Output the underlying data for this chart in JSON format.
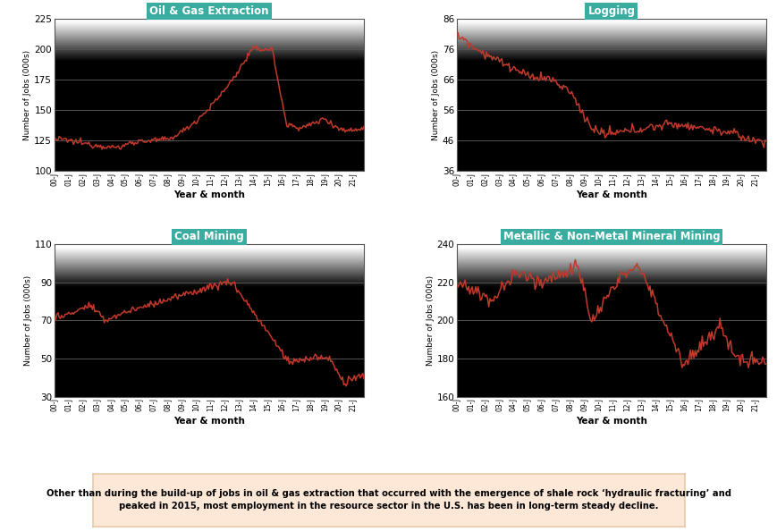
{
  "oil_gas": {
    "title": "Oil & Gas Extraction",
    "ylabel": "Number of Jobs (000s)",
    "xlabel": "Year & month",
    "ylim": [
      100,
      225
    ],
    "yticks": [
      100,
      125,
      150,
      175,
      200,
      225
    ]
  },
  "logging": {
    "title": "Logging",
    "ylabel": "Number of Jobs (000s)",
    "xlabel": "Year & month",
    "ylim": [
      36,
      86
    ],
    "yticks": [
      36,
      46,
      56,
      66,
      76,
      86
    ]
  },
  "coal": {
    "title": "Coal Mining",
    "ylabel": "Number of Jobs (000s)",
    "xlabel": "Year & month",
    "ylim": [
      30,
      110
    ],
    "yticks": [
      30,
      50,
      70,
      90,
      110
    ]
  },
  "mining": {
    "title": "Metallic & Non-Metal Mineral Mining",
    "ylabel": "Number of Jobs (000s)",
    "xlabel": "Year & month",
    "ylim": [
      160,
      240
    ],
    "yticks": [
      160,
      180,
      200,
      220,
      240
    ]
  },
  "xtick_labels": [
    "00-J",
    "01-J",
    "02-J",
    "03-J",
    "04-J",
    "05-J",
    "06-J",
    "07-J",
    "08-J",
    "09-J",
    "10-J",
    "11-J",
    "12-J",
    "13-J",
    "14-J",
    "15-J",
    "16-J",
    "17-J",
    "18-J",
    "19-J",
    "20-J",
    "21-J"
  ],
  "n_months": 262,
  "line_color": "#c0392b",
  "title_bg_color": "#3aada0",
  "title_text_color": "#ffffff",
  "plot_bg_top": "#f0f0f0",
  "plot_bg_bottom": "#d0d0d0",
  "outer_bg_color": "#ffffff",
  "caption_bg_color": "#fde8d8",
  "caption_border_color": "#e8c8a8",
  "caption_text_line1": "Other than during the build-up of jobs in oil & gas extraction that occurred with the emergence of shale rock ‘hydraulic fracturing’ and",
  "caption_text_line2": "peaked in 2015, most employment in the resource sector in the U.S. has been in long-term steady decline.",
  "grid_color": "#888888",
  "spine_color": "#555555"
}
